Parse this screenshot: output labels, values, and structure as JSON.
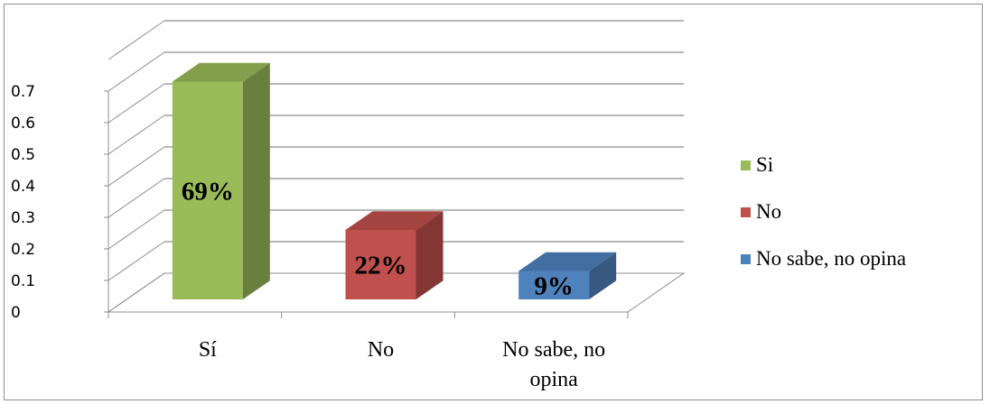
{
  "chart_data": {
    "type": "bar",
    "categories": [
      "Sí",
      "No",
      "No sabe, no opina"
    ],
    "values": [
      0.69,
      0.22,
      0.09
    ],
    "data_labels": [
      "69%",
      "22%",
      "9%"
    ],
    "legend": [
      "Si",
      "No",
      "No sabe, no opina"
    ],
    "colors": [
      "#9bbb59",
      "#c0504d",
      "#4f81bd"
    ],
    "yticks": [
      "0",
      "0.1",
      "0.2",
      "0.3",
      "0.4",
      "0.5",
      "0.6",
      "0.7"
    ],
    "ylim": [
      0,
      0.8
    ],
    "grid": true,
    "legend_position": "right",
    "style": "3d-column"
  }
}
